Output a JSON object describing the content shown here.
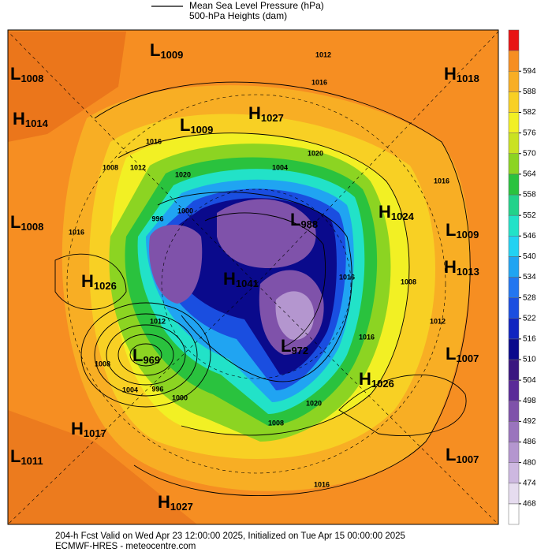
{
  "header": {
    "legend": [
      "Mean Sea Level Pressure (hPa)",
      "500-hPa Heights (dam)"
    ]
  },
  "centers": [
    {
      "type": "L",
      "value": 1008
    },
    {
      "type": "L",
      "value": 1009
    },
    {
      "type": "H",
      "value": 1018
    },
    {
      "type": "H",
      "value": 1014
    },
    {
      "type": "L",
      "value": 1009
    },
    {
      "type": "H",
      "value": 1027
    },
    {
      "type": "L",
      "value": 1008
    },
    {
      "type": "H",
      "value": 1024
    },
    {
      "type": "L",
      "value": 1009
    },
    {
      "type": "L",
      "value": 988
    },
    {
      "type": "H",
      "value": 1013
    },
    {
      "type": "H",
      "value": 1026
    },
    {
      "type": "H",
      "value": 1041
    },
    {
      "type": "L",
      "value": 969
    },
    {
      "type": "L",
      "value": 972
    },
    {
      "type": "L",
      "value": 1007
    },
    {
      "type": "H",
      "value": 1026
    },
    {
      "type": "H",
      "value": 1017
    },
    {
      "type": "L",
      "value": 1011
    },
    {
      "type": "L",
      "value": 1007
    },
    {
      "type": "H",
      "value": 1027
    }
  ],
  "contour_labels": [
    1012,
    1016,
    1016,
    1008,
    1012,
    1020,
    1004,
    1020,
    1016,
    1000,
    996,
    1012,
    1008,
    1004,
    996,
    1000,
    1016,
    1008,
    1012,
    1016,
    1020,
    1008,
    1016,
    1016
  ],
  "colorbar": {
    "ticks": [
      468,
      474,
      480,
      486,
      492,
      498,
      504,
      510,
      516,
      522,
      528,
      534,
      540,
      546,
      552,
      558,
      564,
      570,
      576,
      582,
      588,
      594
    ],
    "colors": [
      "#ffffff",
      "#e6dcef",
      "#cdb8e0",
      "#b496cf",
      "#9a74bd",
      "#7f52aa",
      "#5a2a98",
      "#3a1680",
      "#0a0a8c",
      "#1024c0",
      "#1a4ee0",
      "#2276f0",
      "#20a4f2",
      "#22d2f2",
      "#22e2c8",
      "#22d28a",
      "#2ac23e",
      "#8cd422",
      "#cae222",
      "#f2f024",
      "#f8d024",
      "#f8ae24",
      "#f68e22",
      "#e81414"
    ]
  },
  "footer": [
    "204-h Fcst Valid on Wed Apr 23 12:00:00 2025, Initialized on Tue Apr 15 00:00:00 2025",
    "ECMWF-HRES - meteocentre.com"
  ]
}
